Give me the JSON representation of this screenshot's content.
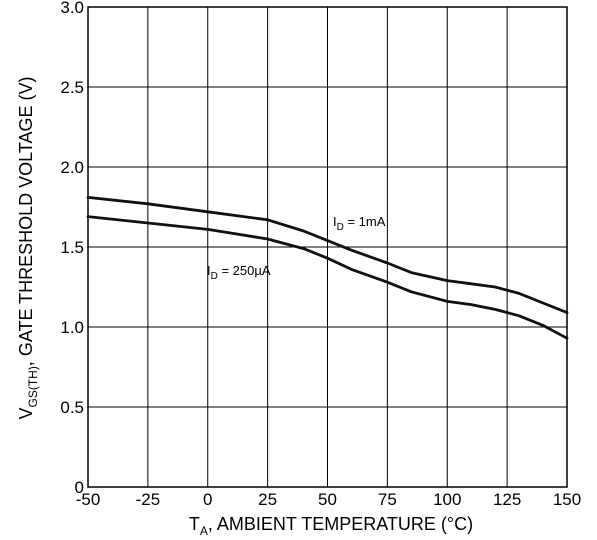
{
  "chart_data": {
    "type": "line",
    "xlabel": {
      "main": "T",
      "sub": "A",
      "rest": ", AMBIENT TEMPERATURE (",
      "unit": "°C",
      "close": ")"
    },
    "ylabel": {
      "main": "V",
      "sub": "GS(TH)",
      "rest": ", GATE THRESHOLD VOLTAGE (V)"
    },
    "xlim": [
      -50,
      150
    ],
    "ylim": [
      0,
      3.0
    ],
    "xticks": [
      -50,
      -25,
      0,
      25,
      50,
      75,
      100,
      125,
      150
    ],
    "xtick_labels": [
      "-50",
      "-25",
      "0",
      "25",
      "50",
      "75",
      "100",
      "125",
      "150"
    ],
    "yticks": [
      0,
      0.5,
      1.0,
      1.5,
      2.0,
      2.5,
      3.0
    ],
    "ytick_labels": [
      "0",
      "0.5",
      "1.0",
      "1.5",
      "2.0",
      "2.5",
      "3.0"
    ],
    "grid": true,
    "series": [
      {
        "name": {
          "main": "I",
          "sub": "D",
          "rest": " = 1mA"
        },
        "x": [
          -50,
          -25,
          0,
          25,
          40,
          50,
          60,
          75,
          85,
          100,
          110,
          120,
          130,
          140,
          150
        ],
        "y": [
          1.81,
          1.77,
          1.72,
          1.67,
          1.6,
          1.54,
          1.48,
          1.4,
          1.34,
          1.29,
          1.27,
          1.25,
          1.21,
          1.15,
          1.09
        ]
      },
      {
        "name": {
          "main": "I",
          "sub": "D",
          "rest": " = 250µA"
        },
        "x": [
          -50,
          -25,
          0,
          25,
          40,
          50,
          60,
          75,
          85,
          100,
          110,
          120,
          130,
          140,
          145,
          150
        ],
        "y": [
          1.69,
          1.65,
          1.61,
          1.55,
          1.49,
          1.43,
          1.36,
          1.28,
          1.22,
          1.16,
          1.14,
          1.11,
          1.07,
          1.01,
          0.97,
          0.93
        ]
      }
    ]
  }
}
